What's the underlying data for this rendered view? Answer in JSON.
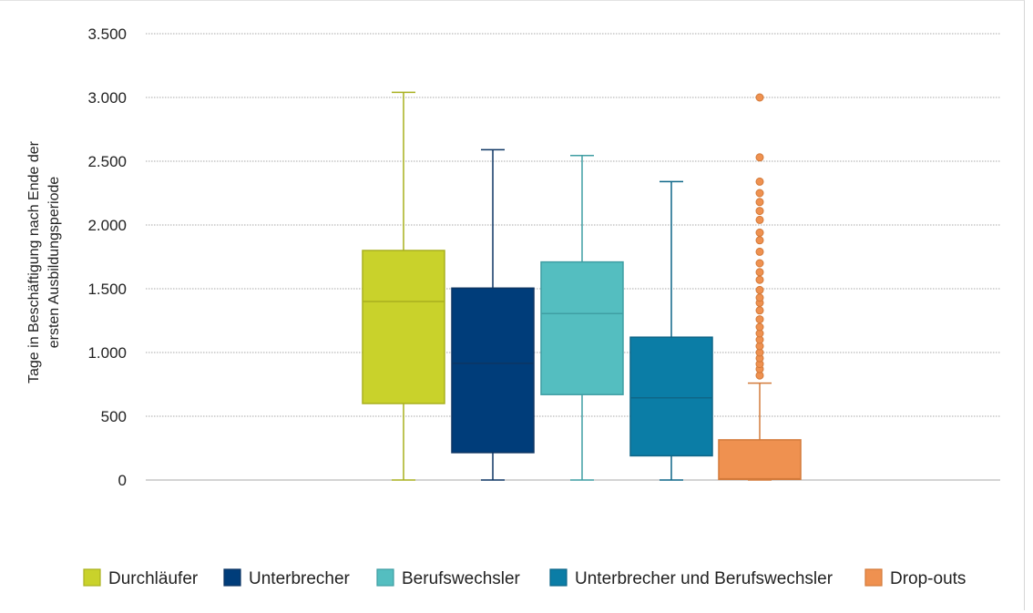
{
  "chart_data": {
    "type": "box",
    "title": "",
    "xlabel": "",
    "ylabel_lines": [
      "Tage in Beschäftigung nach Ende der",
      "erstenAusbildungsperiode"
    ],
    "ylabel_display": [
      "Tage in Beschäftigung nach Ende der",
      "ersten Ausbildungsperiode"
    ],
    "ylim": [
      0,
      3500
    ],
    "yticks": [
      0,
      500,
      1000,
      1500,
      2000,
      2500,
      3000,
      3500
    ],
    "ytick_labels": [
      "0",
      "500",
      "1.000",
      "1.500",
      "2.000",
      "2.500",
      "3.000",
      "3.500"
    ],
    "grid": true,
    "legend_position": "bottom",
    "series": [
      {
        "name": "Durchläufer",
        "color": "#c9d22b",
        "stroke": "#a9b01f",
        "min": 0,
        "q1": 600,
        "median": 1400,
        "q3": 1800,
        "max": 3040,
        "outliers": []
      },
      {
        "name": "Unterbrecher",
        "color": "#003d7a",
        "stroke": "#0d3563",
        "min": 0,
        "q1": 215,
        "median": 915,
        "q3": 1505,
        "max": 2590,
        "outliers": []
      },
      {
        "name": "Berufswechsler",
        "color": "#54bec0",
        "stroke": "#3f9ea3",
        "min": 0,
        "q1": 670,
        "median": 1305,
        "q3": 1710,
        "max": 2545,
        "outliers": []
      },
      {
        "name": "Unterbrecher und Berufswechsler",
        "color": "#0b7da6",
        "stroke": "#0e6688",
        "min": 0,
        "q1": 190,
        "median": 645,
        "q3": 1120,
        "max": 2340,
        "outliers": []
      },
      {
        "name": "Drop-outs",
        "color": "#ef9150",
        "stroke": "#d37a3a",
        "min": 0,
        "q1": 5,
        "median": 10,
        "q3": 315,
        "max": 760,
        "outliers": [
          820,
          870,
          910,
          955,
          1000,
          1050,
          1100,
          1150,
          1200,
          1260,
          1330,
          1390,
          1430,
          1490,
          1570,
          1630,
          1700,
          1790,
          1880,
          1940,
          2040,
          2110,
          2180,
          2250,
          2340,
          2530,
          3000
        ]
      }
    ]
  }
}
